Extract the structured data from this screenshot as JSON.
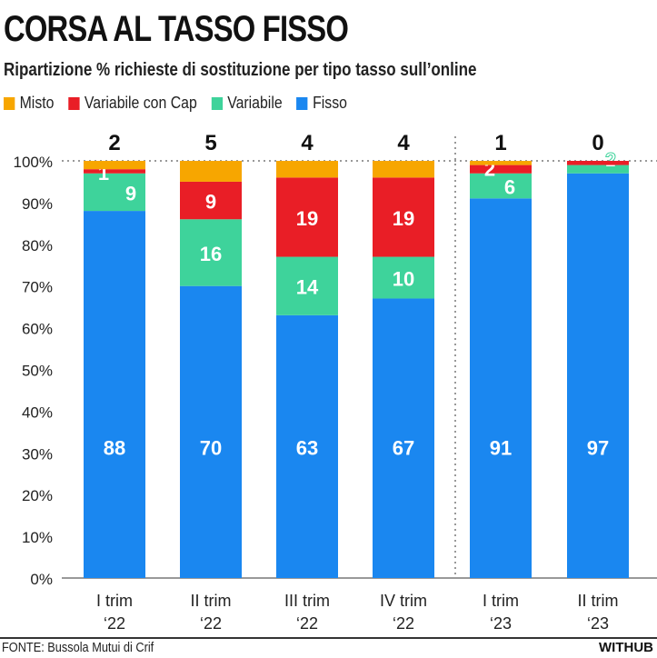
{
  "chart_data": {
    "type": "bar",
    "stacked": true,
    "title": "CORSA AL TASSO FISSO",
    "subtitle": "Ripartizione % richieste di sostituzione per tipo tasso sull’online",
    "categories": [
      [
        "I trim",
        "‘22"
      ],
      [
        "II trim",
        "‘22"
      ],
      [
        "III trim",
        "‘22"
      ],
      [
        "IV trim",
        "‘22"
      ],
      [
        "I trim",
        "‘23"
      ],
      [
        "II trim",
        "‘23"
      ]
    ],
    "series": [
      {
        "name": "Fisso",
        "color": "#1a87f0",
        "values": [
          88,
          70,
          63,
          67,
          91,
          97
        ],
        "labels": [
          "88",
          "70",
          "63",
          "67",
          "91",
          "97"
        ]
      },
      {
        "name": "Variabile",
        "color": "#3ed39b",
        "values": [
          9,
          16,
          14,
          10,
          6,
          2
        ],
        "labels": [
          "9",
          "16",
          "14",
          "10",
          "6",
          "2"
        ]
      },
      {
        "name": "Variabile con Cap",
        "color": "#e91e26",
        "values": [
          1,
          9,
          19,
          19,
          2,
          1
        ],
        "labels": [
          "1",
          "9",
          "19",
          "19",
          "2",
          ""
        ]
      },
      {
        "name": "Misto",
        "color": "#f7a600",
        "values": [
          2,
          5,
          4,
          4,
          1,
          0
        ],
        "labels": [
          "2",
          "5",
          "4",
          "4",
          "1",
          "0"
        ]
      }
    ],
    "legend_order": [
      "Misto",
      "Variabile con Cap",
      "Variabile",
      "Fisso"
    ],
    "ylim": [
      0,
      100
    ],
    "yticks": [
      "0%",
      "10%",
      "20%",
      "30%",
      "40%",
      "50%",
      "60%",
      "70%",
      "80%",
      "90%",
      "100%"
    ],
    "legend_placement": "top-left"
  },
  "footer": {
    "source": "FONTE: Bussola Mutui di Crif",
    "brand": "WITHUB"
  }
}
